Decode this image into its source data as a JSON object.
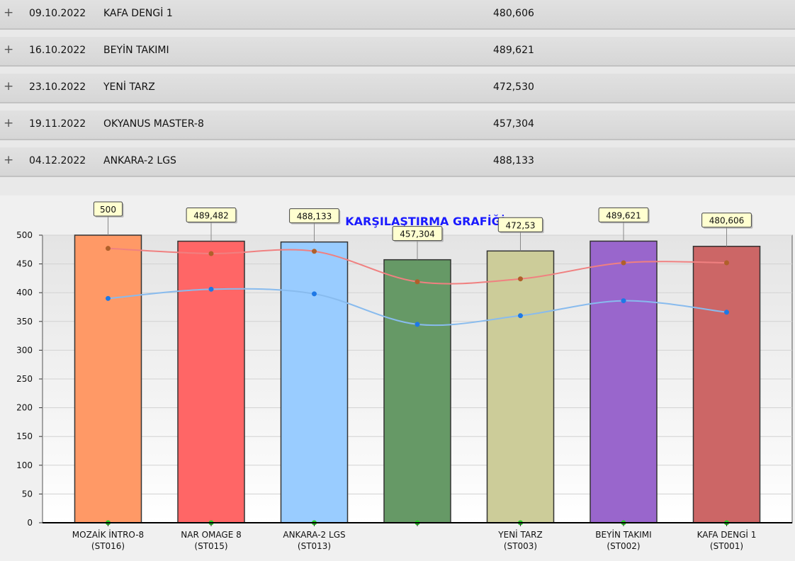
{
  "rows": [
    {
      "icon": "plus-icon",
      "symbol": "+",
      "date": "09.10.2022",
      "name": "KAFA DENGİ 1",
      "value": "480,606"
    },
    {
      "icon": "plus-icon",
      "symbol": "+",
      "date": "16.10.2022",
      "name": "BEYİN TAKIMI",
      "value": "489,621"
    },
    {
      "icon": "plus-icon",
      "symbol": "+",
      "date": "23.10.2022",
      "name": "YENİ TARZ",
      "value": "472,530"
    },
    {
      "icon": "plus-icon",
      "symbol": "+",
      "date": "19.11.2022",
      "name": "OKYANUS MASTER-8",
      "value": "457,304"
    },
    {
      "icon": "plus-icon",
      "symbol": "+",
      "date": "04.12.2022",
      "name": "ANKARA-2 LGS",
      "value": "488,133"
    }
  ],
  "chart_data": {
    "type": "bar",
    "title": "KARŞILAŞTIRMA GRAFİĞİ",
    "categories": [
      [
        "MOZAİK İNTRO-8",
        "(ST016)"
      ],
      [
        "NAR OMAGE 8",
        "(ST015)"
      ],
      [
        "ANKARA-2 LGS",
        "(ST013)"
      ],
      [
        "",
        ""
      ],
      [
        "YENİ TARZ",
        "(ST003)"
      ],
      [
        "BEYİN TAKIMI",
        "(ST002)"
      ],
      [
        "KAFA DENGİ 1",
        "(ST001)"
      ]
    ],
    "values": [
      500,
      489.482,
      488.133,
      457.304,
      472.53,
      489.621,
      480.606
    ],
    "value_labels": [
      "500",
      "489,482",
      "488,133",
      "457,304",
      "472,53",
      "489,621",
      "480,606"
    ],
    "bar_colors": [
      "#ff9966",
      "#ff6666",
      "#99ccff",
      "#669966",
      "#cccc99",
      "#9966cc",
      "#cc6666"
    ],
    "line_series": [
      {
        "values": [
          477,
          468,
          472,
          419,
          424,
          452,
          452
        ],
        "color": "#f08080",
        "marker_color": "#b0602a"
      },
      {
        "values": [
          390,
          406,
          398,
          345,
          360,
          386,
          366
        ],
        "color": "#88bbee",
        "marker_color": "#1e78e6"
      },
      {
        "values": [
          0,
          0,
          0,
          0,
          0,
          0,
          0
        ],
        "color": "#22cc22",
        "marker_color": "#22cc22"
      }
    ],
    "yticks": [
      "0",
      "50",
      "100",
      "150",
      "200",
      "250",
      "300",
      "350",
      "400",
      "450",
      "500"
    ],
    "ylim": [
      0,
      500
    ],
    "grid": true
  }
}
